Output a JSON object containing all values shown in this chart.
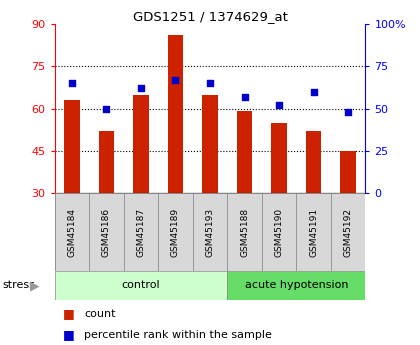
{
  "title": "GDS1251 / 1374629_at",
  "samples": [
    "GSM45184",
    "GSM45186",
    "GSM45187",
    "GSM45189",
    "GSM45193",
    "GSM45188",
    "GSM45190",
    "GSM45191",
    "GSM45192"
  ],
  "counts": [
    63,
    52,
    65,
    86,
    65,
    59,
    55,
    52,
    45
  ],
  "percentiles": [
    65,
    50,
    62,
    67,
    65,
    57,
    52,
    60,
    48
  ],
  "left_ylim": [
    30,
    90
  ],
  "right_ylim": [
    0,
    100
  ],
  "left_yticks": [
    30,
    45,
    60,
    75,
    90
  ],
  "right_yticks": [
    0,
    25,
    50,
    75,
    100
  ],
  "right_yticklabels": [
    "0",
    "25",
    "50",
    "75",
    "100%"
  ],
  "bar_color": "#cc2200",
  "dot_color": "#0000cc",
  "control_color": "#ccffcc",
  "hypo_color": "#66dd66",
  "control_label": "control",
  "hypo_label": "acute hypotension",
  "stress_label": "stress",
  "n_control": 5,
  "n_hypo": 4,
  "legend_count": "count",
  "legend_pct": "percentile rank within the sample",
  "tick_bg_color": "#d8d8d8",
  "figsize": [
    4.2,
    3.45
  ],
  "dpi": 100
}
